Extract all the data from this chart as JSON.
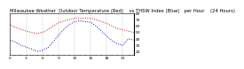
{
  "title": "Milwaukee Weather  Outdoor Temperature (Red)    vs THSW Index (Blue)   per Hour    (24 Hours)",
  "hours": [
    0,
    1,
    2,
    3,
    4,
    5,
    6,
    7,
    8,
    9,
    10,
    11,
    12,
    13,
    14,
    15,
    16,
    17,
    18,
    19,
    20,
    21,
    22,
    23
  ],
  "temp_red": [
    62,
    58,
    55,
    52,
    50,
    48,
    50,
    54,
    60,
    65,
    68,
    70,
    72,
    72,
    72,
    72,
    70,
    67,
    64,
    60,
    56,
    54,
    52,
    50
  ],
  "thsw_blue": [
    38,
    35,
    30,
    27,
    24,
    20,
    22,
    26,
    35,
    45,
    55,
    62,
    67,
    68,
    67,
    66,
    60,
    52,
    44,
    37,
    32,
    30,
    40,
    38
  ],
  "red_color": "#cc0000",
  "blue_color": "#0000cc",
  "bg_color": "#ffffff",
  "grid_color": "#888888",
  "ylim": [
    15,
    80
  ],
  "ytick_vals": [
    20,
    30,
    40,
    50,
    60,
    70,
    80
  ],
  "title_fontsize": 3.8,
  "tick_fontsize": 3.2,
  "linewidth": 0.7
}
